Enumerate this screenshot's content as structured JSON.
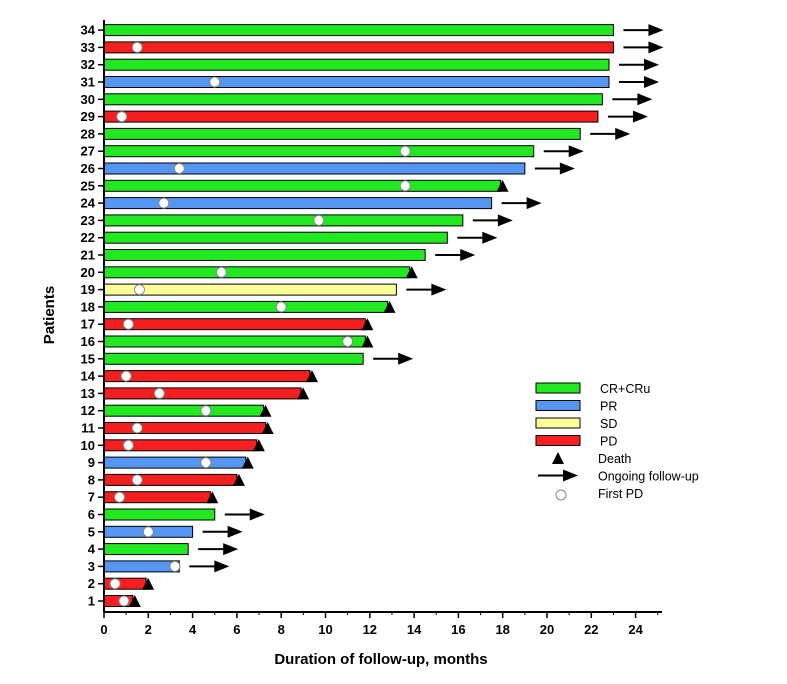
{
  "chart_data": {
    "type": "swimmer",
    "xlabel": "Duration of follow-up, months",
    "ylabel": "Patients",
    "xlim": [
      0,
      25
    ],
    "x_ticks": [
      0,
      2,
      4,
      6,
      8,
      10,
      12,
      14,
      16,
      18,
      20,
      22,
      24
    ],
    "y_ticks": [
      1,
      2,
      3,
      4,
      5,
      6,
      7,
      8,
      9,
      10,
      11,
      12,
      13,
      14,
      15,
      16,
      17,
      18,
      19,
      20,
      21,
      22,
      23,
      24,
      25,
      26,
      27,
      28,
      29,
      30,
      31,
      32,
      33,
      34
    ],
    "colors": {
      "CR+CRu": "#22e822",
      "PR": "#5596f2",
      "SD": "#ffff99",
      "PD": "#f51f1f"
    },
    "legend": [
      {
        "label": "CR+CRu",
        "kind": "box",
        "category": "CR+CRu"
      },
      {
        "label": "PR",
        "kind": "box",
        "category": "PR"
      },
      {
        "label": "SD",
        "kind": "box",
        "category": "SD"
      },
      {
        "label": "PD",
        "kind": "box",
        "category": "PD"
      },
      {
        "label": "Death",
        "kind": "triangle"
      },
      {
        "label": "Ongoing follow-up",
        "kind": "arrow"
      },
      {
        "label": "First PD",
        "kind": "circle"
      }
    ],
    "patients": [
      {
        "id": 1,
        "response": "PD",
        "duration": 1.3,
        "first_pd": 0.9,
        "death": true,
        "ongoing": false
      },
      {
        "id": 2,
        "response": "PD",
        "duration": 1.9,
        "first_pd": 0.5,
        "death": true,
        "ongoing": false
      },
      {
        "id": 3,
        "response": "PR",
        "duration": 3.4,
        "first_pd": 3.2,
        "death": false,
        "ongoing": true
      },
      {
        "id": 4,
        "response": "CR+CRu",
        "duration": 3.8,
        "first_pd": null,
        "death": false,
        "ongoing": true
      },
      {
        "id": 5,
        "response": "PR",
        "duration": 4.0,
        "first_pd": 2.0,
        "death": false,
        "ongoing": true
      },
      {
        "id": 6,
        "response": "CR+CRu",
        "duration": 5.0,
        "first_pd": null,
        "death": false,
        "ongoing": true
      },
      {
        "id": 7,
        "response": "PD",
        "duration": 4.8,
        "first_pd": 0.7,
        "death": true,
        "ongoing": false
      },
      {
        "id": 8,
        "response": "PD",
        "duration": 6.0,
        "first_pd": 1.5,
        "death": true,
        "ongoing": false
      },
      {
        "id": 9,
        "response": "PR",
        "duration": 6.4,
        "first_pd": 4.6,
        "death": true,
        "ongoing": false
      },
      {
        "id": 10,
        "response": "PD",
        "duration": 6.9,
        "first_pd": 1.1,
        "death": true,
        "ongoing": false
      },
      {
        "id": 11,
        "response": "PD",
        "duration": 7.3,
        "first_pd": 1.5,
        "death": true,
        "ongoing": false
      },
      {
        "id": 12,
        "response": "CR+CRu",
        "duration": 7.2,
        "first_pd": 4.6,
        "death": true,
        "ongoing": false
      },
      {
        "id": 13,
        "response": "PD",
        "duration": 8.9,
        "first_pd": 2.5,
        "death": true,
        "ongoing": false
      },
      {
        "id": 14,
        "response": "PD",
        "duration": 9.3,
        "first_pd": 1.0,
        "death": true,
        "ongoing": false
      },
      {
        "id": 15,
        "response": "CR+CRu",
        "duration": 11.7,
        "first_pd": null,
        "death": false,
        "ongoing": true
      },
      {
        "id": 16,
        "response": "CR+CRu",
        "duration": 11.8,
        "first_pd": 11.0,
        "death": true,
        "ongoing": false
      },
      {
        "id": 17,
        "response": "PD",
        "duration": 11.8,
        "first_pd": 1.1,
        "death": true,
        "ongoing": false
      },
      {
        "id": 18,
        "response": "CR+CRu",
        "duration": 12.8,
        "first_pd": 8.0,
        "death": true,
        "ongoing": false
      },
      {
        "id": 19,
        "response": "SD",
        "duration": 13.2,
        "first_pd": 1.6,
        "death": false,
        "ongoing": true
      },
      {
        "id": 20,
        "response": "CR+CRu",
        "duration": 13.8,
        "first_pd": 5.3,
        "death": true,
        "ongoing": false
      },
      {
        "id": 21,
        "response": "CR+CRu",
        "duration": 14.5,
        "first_pd": null,
        "death": false,
        "ongoing": true
      },
      {
        "id": 22,
        "response": "CR+CRu",
        "duration": 15.5,
        "first_pd": null,
        "death": false,
        "ongoing": true
      },
      {
        "id": 23,
        "response": "CR+CRu",
        "duration": 16.2,
        "first_pd": 9.7,
        "death": false,
        "ongoing": true
      },
      {
        "id": 24,
        "response": "PR",
        "duration": 17.5,
        "first_pd": 2.7,
        "death": false,
        "ongoing": true
      },
      {
        "id": 25,
        "response": "CR+CRu",
        "duration": 17.9,
        "first_pd": 13.6,
        "death": true,
        "ongoing": false
      },
      {
        "id": 26,
        "response": "PR",
        "duration": 19.0,
        "first_pd": 3.4,
        "death": false,
        "ongoing": true
      },
      {
        "id": 27,
        "response": "CR+CRu",
        "duration": 19.4,
        "first_pd": 13.6,
        "death": false,
        "ongoing": true
      },
      {
        "id": 28,
        "response": "CR+CRu",
        "duration": 21.5,
        "first_pd": null,
        "death": false,
        "ongoing": true
      },
      {
        "id": 29,
        "response": "PD",
        "duration": 22.3,
        "first_pd": 0.8,
        "death": false,
        "ongoing": true
      },
      {
        "id": 30,
        "response": "CR+CRu",
        "duration": 22.5,
        "first_pd": null,
        "death": false,
        "ongoing": true
      },
      {
        "id": 31,
        "response": "PR",
        "duration": 22.8,
        "first_pd": 5.0,
        "death": false,
        "ongoing": true
      },
      {
        "id": 32,
        "response": "CR+CRu",
        "duration": 22.8,
        "first_pd": null,
        "death": false,
        "ongoing": true
      },
      {
        "id": 33,
        "response": "PD",
        "duration": 23.0,
        "first_pd": 1.5,
        "death": false,
        "ongoing": true
      },
      {
        "id": 34,
        "response": "CR+CRu",
        "duration": 23.0,
        "first_pd": null,
        "death": false,
        "ongoing": true
      }
    ]
  }
}
